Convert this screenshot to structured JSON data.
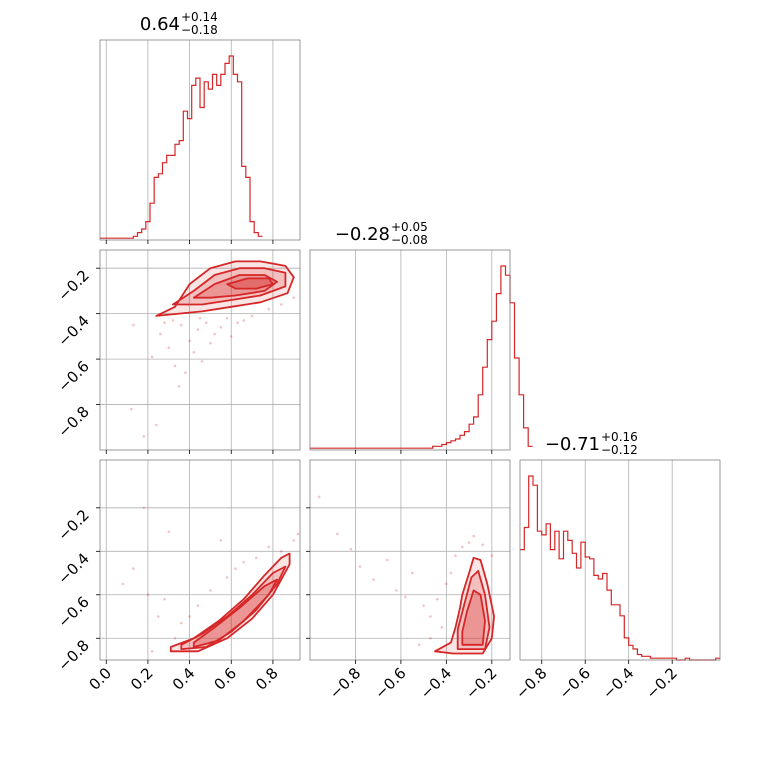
{
  "chart_data": {
    "type": "corner",
    "colors": {
      "series": "#d62728",
      "grid": "#b0b0b0",
      "frame": "#808080",
      "text": "#000000"
    },
    "titles": [
      {
        "main": "0.64",
        "sup": "+0.14",
        "sub": "−0.18"
      },
      {
        "main": "−0.28",
        "sup": "+0.05",
        "sub": "−0.08"
      },
      {
        "main": "−0.71",
        "sup": "+0.16",
        "sub": "−0.12"
      }
    ],
    "ranges": [
      [
        -0.03,
        0.93
      ],
      [
        -1.0,
        -0.12
      ],
      [
        -0.9,
        0.02
      ]
    ],
    "x_tick_values": [
      [
        0.0,
        0.2,
        0.4,
        0.6,
        0.8
      ],
      [
        -0.8,
        -0.6,
        -0.4,
        -0.2
      ],
      [
        -0.8,
        -0.6,
        -0.4,
        -0.2
      ]
    ],
    "x_tick_labels": [
      [
        "0.0",
        "0.2",
        "0.4",
        "0.6",
        "0.8"
      ],
      [
        "−0.8",
        "−0.6",
        "−0.4",
        "−0.2"
      ],
      [
        "−0.8",
        "−0.6",
        "−0.4",
        "−0.2"
      ]
    ],
    "y_tick_values": [
      [
        -0.8,
        -0.6,
        -0.4,
        -0.2
      ],
      [
        -0.8,
        -0.6,
        -0.4,
        -0.2
      ]
    ],
    "y_tick_labels": [
      [
        "−0.8",
        "−0.6",
        "−0.4",
        "−0.2"
      ],
      [
        "−0.8",
        "−0.6",
        "−0.4",
        "−0.2"
      ]
    ],
    "histograms": [
      {
        "param": 0,
        "edges_start": -0.03,
        "bin_width": 0.02,
        "counts": [
          1,
          1,
          1,
          1,
          1,
          1,
          1,
          1,
          2,
          4,
          6,
          10,
          20,
          34,
          36,
          42,
          46,
          46,
          52,
          54,
          70,
          66,
          84,
          88,
          72,
          86,
          82,
          90,
          84,
          90,
          96,
          100,
          90,
          86,
          40,
          34,
          10,
          4,
          2
        ]
      },
      {
        "param": 1,
        "edges_start": -1.0,
        "bin_width": 0.02,
        "counts": [
          1,
          1,
          1,
          1,
          1,
          1,
          1,
          1,
          1,
          1,
          1,
          1,
          1,
          1,
          1,
          1,
          1,
          1,
          1,
          1,
          1,
          1,
          1,
          1,
          1,
          1,
          1,
          2,
          2,
          3,
          4,
          5,
          6,
          8,
          10,
          14,
          18,
          30,
          45,
          60,
          70,
          85,
          100,
          95,
          80,
          50,
          30,
          12,
          2
        ]
      },
      {
        "param": 2,
        "edges_start": -0.9,
        "bin_width": 0.02,
        "counts": [
          60,
          72,
          100,
          95,
          70,
          68,
          74,
          60,
          70,
          55,
          70,
          65,
          58,
          50,
          64,
          56,
          55,
          46,
          44,
          47,
          38,
          30,
          30,
          24,
          12,
          8,
          6,
          3,
          2,
          2,
          1,
          1,
          1,
          1,
          1,
          1,
          0,
          0,
          1,
          0,
          0,
          0,
          0,
          0,
          0,
          1
        ]
      }
    ],
    "contours": [
      {
        "x_param": 0,
        "y_param": 1,
        "levels": [
          [
            [
              0.24,
              -0.41
            ],
            [
              0.33,
              -0.37
            ],
            [
              0.4,
              -0.27
            ],
            [
              0.5,
              -0.2
            ],
            [
              0.62,
              -0.17
            ],
            [
              0.74,
              -0.17
            ],
            [
              0.86,
              -0.19
            ],
            [
              0.9,
              -0.24
            ],
            [
              0.87,
              -0.31
            ],
            [
              0.74,
              -0.35
            ],
            [
              0.6,
              -0.37
            ],
            [
              0.46,
              -0.39
            ],
            [
              0.35,
              -0.4
            ]
          ],
          [
            [
              0.32,
              -0.36
            ],
            [
              0.42,
              -0.3
            ],
            [
              0.52,
              -0.23
            ],
            [
              0.64,
              -0.2
            ],
            [
              0.76,
              -0.2
            ],
            [
              0.86,
              -0.22
            ],
            [
              0.86,
              -0.28
            ],
            [
              0.74,
              -0.32
            ],
            [
              0.6,
              -0.34
            ],
            [
              0.46,
              -0.36
            ]
          ],
          [
            [
              0.42,
              -0.33
            ],
            [
              0.52,
              -0.27
            ],
            [
              0.64,
              -0.23
            ],
            [
              0.76,
              -0.23
            ],
            [
              0.82,
              -0.26
            ],
            [
              0.76,
              -0.3
            ],
            [
              0.62,
              -0.32
            ],
            [
              0.5,
              -0.33
            ]
          ],
          [
            [
              0.58,
              -0.27
            ],
            [
              0.68,
              -0.245
            ],
            [
              0.78,
              -0.245
            ],
            [
              0.8,
              -0.27
            ],
            [
              0.72,
              -0.29
            ],
            [
              0.62,
              -0.29
            ]
          ]
        ]
      },
      {
        "x_param": 0,
        "y_param": 2,
        "levels": [
          [
            [
              0.31,
              -0.86
            ],
            [
              0.44,
              -0.86
            ],
            [
              0.58,
              -0.8
            ],
            [
              0.7,
              -0.71
            ],
            [
              0.8,
              -0.6
            ],
            [
              0.88,
              -0.46
            ],
            [
              0.88,
              -0.41
            ],
            [
              0.84,
              -0.43
            ],
            [
              0.76,
              -0.51
            ],
            [
              0.66,
              -0.62
            ],
            [
              0.54,
              -0.72
            ],
            [
              0.42,
              -0.8
            ],
            [
              0.31,
              -0.84
            ]
          ],
          [
            [
              0.36,
              -0.85
            ],
            [
              0.48,
              -0.84
            ],
            [
              0.6,
              -0.77
            ],
            [
              0.72,
              -0.67
            ],
            [
              0.82,
              -0.55
            ],
            [
              0.86,
              -0.47
            ],
            [
              0.8,
              -0.5
            ],
            [
              0.7,
              -0.6
            ],
            [
              0.58,
              -0.7
            ],
            [
              0.46,
              -0.78
            ],
            [
              0.36,
              -0.83
            ]
          ],
          [
            [
              0.42,
              -0.84
            ],
            [
              0.54,
              -0.81
            ],
            [
              0.66,
              -0.72
            ],
            [
              0.78,
              -0.6
            ],
            [
              0.82,
              -0.53
            ],
            [
              0.76,
              -0.56
            ],
            [
              0.64,
              -0.66
            ],
            [
              0.52,
              -0.75
            ],
            [
              0.42,
              -0.82
            ]
          ]
        ]
      },
      {
        "x_param": 1,
        "y_param": 2,
        "levels": [
          [
            [
              -0.37,
              -0.87
            ],
            [
              -0.24,
              -0.87
            ],
            [
              -0.2,
              -0.8
            ],
            [
              -0.19,
              -0.7
            ],
            [
              -0.22,
              -0.55
            ],
            [
              -0.25,
              -0.44
            ],
            [
              -0.28,
              -0.43
            ],
            [
              -0.3,
              -0.5
            ],
            [
              -0.33,
              -0.6
            ],
            [
              -0.34,
              -0.66
            ],
            [
              -0.36,
              -0.75
            ],
            [
              -0.38,
              -0.82
            ],
            [
              -0.45,
              -0.86
            ]
          ],
          [
            [
              -0.35,
              -0.85
            ],
            [
              -0.23,
              -0.85
            ],
            [
              -0.21,
              -0.75
            ],
            [
              -0.23,
              -0.6
            ],
            [
              -0.26,
              -0.49
            ],
            [
              -0.29,
              -0.52
            ],
            [
              -0.32,
              -0.64
            ],
            [
              -0.35,
              -0.76
            ]
          ],
          [
            [
              -0.33,
              -0.83
            ],
            [
              -0.24,
              -0.83
            ],
            [
              -0.23,
              -0.72
            ],
            [
              -0.25,
              -0.6
            ],
            [
              -0.28,
              -0.58
            ],
            [
              -0.31,
              -0.68
            ],
            [
              -0.33,
              -0.77
            ]
          ]
        ]
      }
    ],
    "scatter": [
      {
        "x_param": 0,
        "y_param": 1,
        "points": [
          [
            0.12,
            -0.82
          ],
          [
            0.13,
            -0.45
          ],
          [
            0.18,
            -0.94
          ],
          [
            0.22,
            -0.59
          ],
          [
            0.26,
            -0.49
          ],
          [
            0.3,
            -0.55
          ],
          [
            0.33,
            -0.63
          ],
          [
            0.35,
            -0.72
          ],
          [
            0.38,
            -0.66
          ],
          [
            0.4,
            -0.52
          ],
          [
            0.42,
            -0.57
          ],
          [
            0.44,
            -0.47
          ],
          [
            0.46,
            -0.61
          ],
          [
            0.48,
            -0.44
          ],
          [
            0.5,
            -0.53
          ],
          [
            0.52,
            -0.49
          ],
          [
            0.55,
            -0.46
          ],
          [
            0.58,
            -0.42
          ],
          [
            0.6,
            -0.5
          ],
          [
            0.63,
            -0.44
          ],
          [
            0.66,
            -0.43
          ],
          [
            0.7,
            -0.41
          ],
          [
            0.28,
            -0.44
          ],
          [
            0.32,
            -0.43
          ],
          [
            0.36,
            -0.45
          ],
          [
            0.45,
            -0.42
          ],
          [
            0.78,
            -0.38
          ],
          [
            0.84,
            -0.36
          ],
          [
            0.9,
            -0.33
          ],
          [
            0.24,
            -0.89
          ]
        ]
      },
      {
        "x_param": 0,
        "y_param": 2,
        "points": [
          [
            0.08,
            -0.55
          ],
          [
            0.13,
            -0.48
          ],
          [
            0.18,
            -0.2
          ],
          [
            0.2,
            -0.6
          ],
          [
            0.22,
            -0.86
          ],
          [
            0.25,
            -0.7
          ],
          [
            0.28,
            -0.62
          ],
          [
            0.3,
            -0.31
          ],
          [
            0.33,
            -0.8
          ],
          [
            0.36,
            -0.73
          ],
          [
            0.4,
            -0.7
          ],
          [
            0.44,
            -0.65
          ],
          [
            0.5,
            -0.58
          ],
          [
            0.55,
            -0.35
          ],
          [
            0.58,
            -0.52
          ],
          [
            0.62,
            -0.48
          ],
          [
            0.66,
            -0.45
          ],
          [
            0.72,
            -0.43
          ],
          [
            0.78,
            -0.38
          ],
          [
            0.84,
            -0.4
          ],
          [
            0.9,
            -0.35
          ],
          [
            0.92,
            -0.32
          ]
        ]
      },
      {
        "x_param": 1,
        "y_param": 2,
        "points": [
          [
            -0.96,
            -0.15
          ],
          [
            -0.88,
            -0.32
          ],
          [
            -0.82,
            -0.39
          ],
          [
            -0.78,
            -0.47
          ],
          [
            -0.72,
            -0.53
          ],
          [
            -0.66,
            -0.44
          ],
          [
            -0.62,
            -0.58
          ],
          [
            -0.58,
            -0.61
          ],
          [
            -0.55,
            -0.5
          ],
          [
            -0.5,
            -0.65
          ],
          [
            -0.47,
            -0.7
          ],
          [
            -0.44,
            -0.62
          ],
          [
            -0.42,
            -0.75
          ],
          [
            -0.4,
            -0.55
          ],
          [
            -0.38,
            -0.5
          ],
          [
            -0.36,
            -0.42
          ],
          [
            -0.33,
            -0.38
          ],
          [
            -0.3,
            -0.36
          ],
          [
            -0.28,
            -0.33
          ],
          [
            -0.24,
            -0.37
          ],
          [
            -0.2,
            -0.42
          ],
          [
            -0.47,
            -0.8
          ],
          [
            -0.52,
            -0.83
          ]
        ]
      }
    ]
  }
}
